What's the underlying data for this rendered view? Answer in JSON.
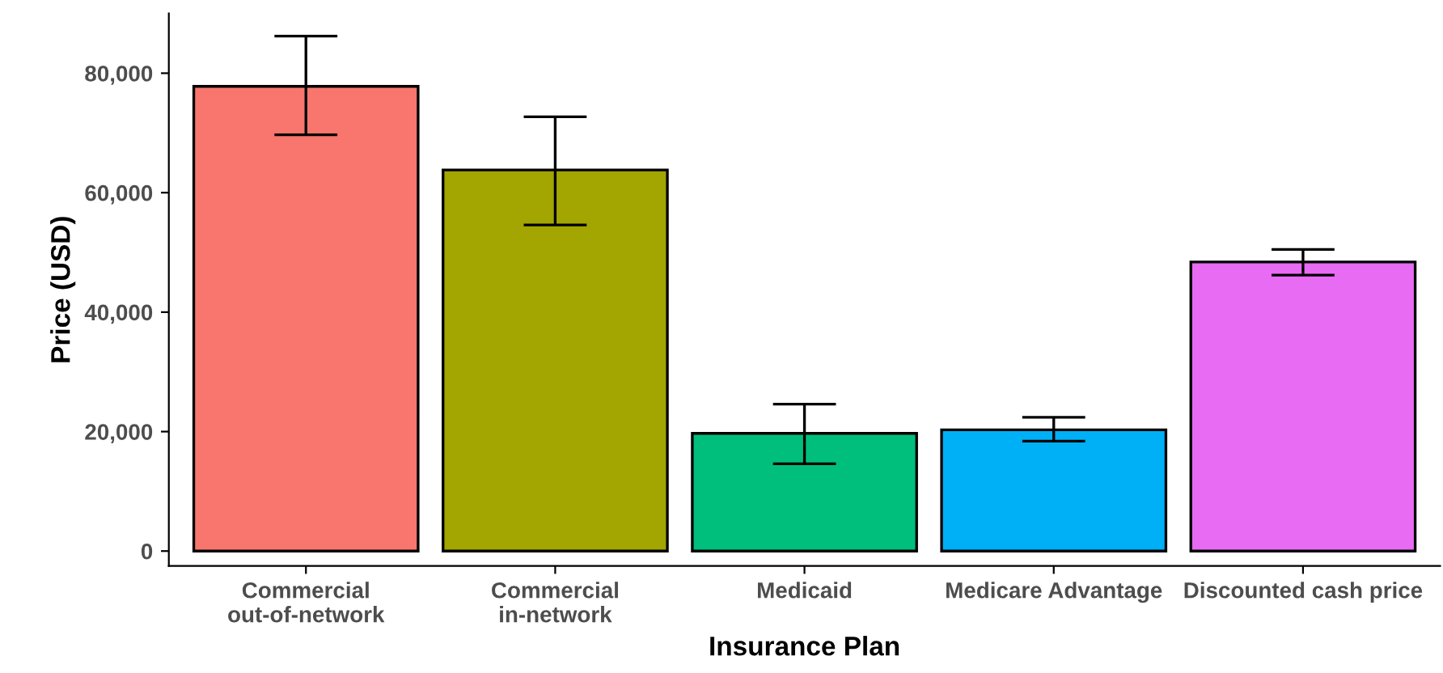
{
  "chart_data": {
    "type": "bar",
    "xlabel": "Insurance Plan",
    "ylabel": "Price (USD)",
    "categories": [
      "Commercial\nout-of-network",
      "Commercial\nin-network",
      "Medicaid",
      "Medicare Advantage",
      "Discounted cash price"
    ],
    "values": [
      77800,
      63800,
      19700,
      20300,
      48400
    ],
    "errors": [
      [
        69700,
        86200
      ],
      [
        54600,
        72700
      ],
      [
        14600,
        24600
      ],
      [
        18400,
        22400
      ],
      [
        46200,
        50500
      ]
    ],
    "colors": [
      "#f8766d",
      "#a3a500",
      "#00bf7d",
      "#00b0f6",
      "#e76bf3"
    ],
    "ylim": [
      -2500,
      90000
    ],
    "yticks": [
      {
        "value": 0,
        "label": "0"
      },
      {
        "value": 20000,
        "label": "20,000"
      },
      {
        "value": 40000,
        "label": "40,000"
      },
      {
        "value": 60000,
        "label": "60,000"
      },
      {
        "value": 80000,
        "label": "80,000"
      }
    ],
    "grid": false,
    "legend": false
  }
}
